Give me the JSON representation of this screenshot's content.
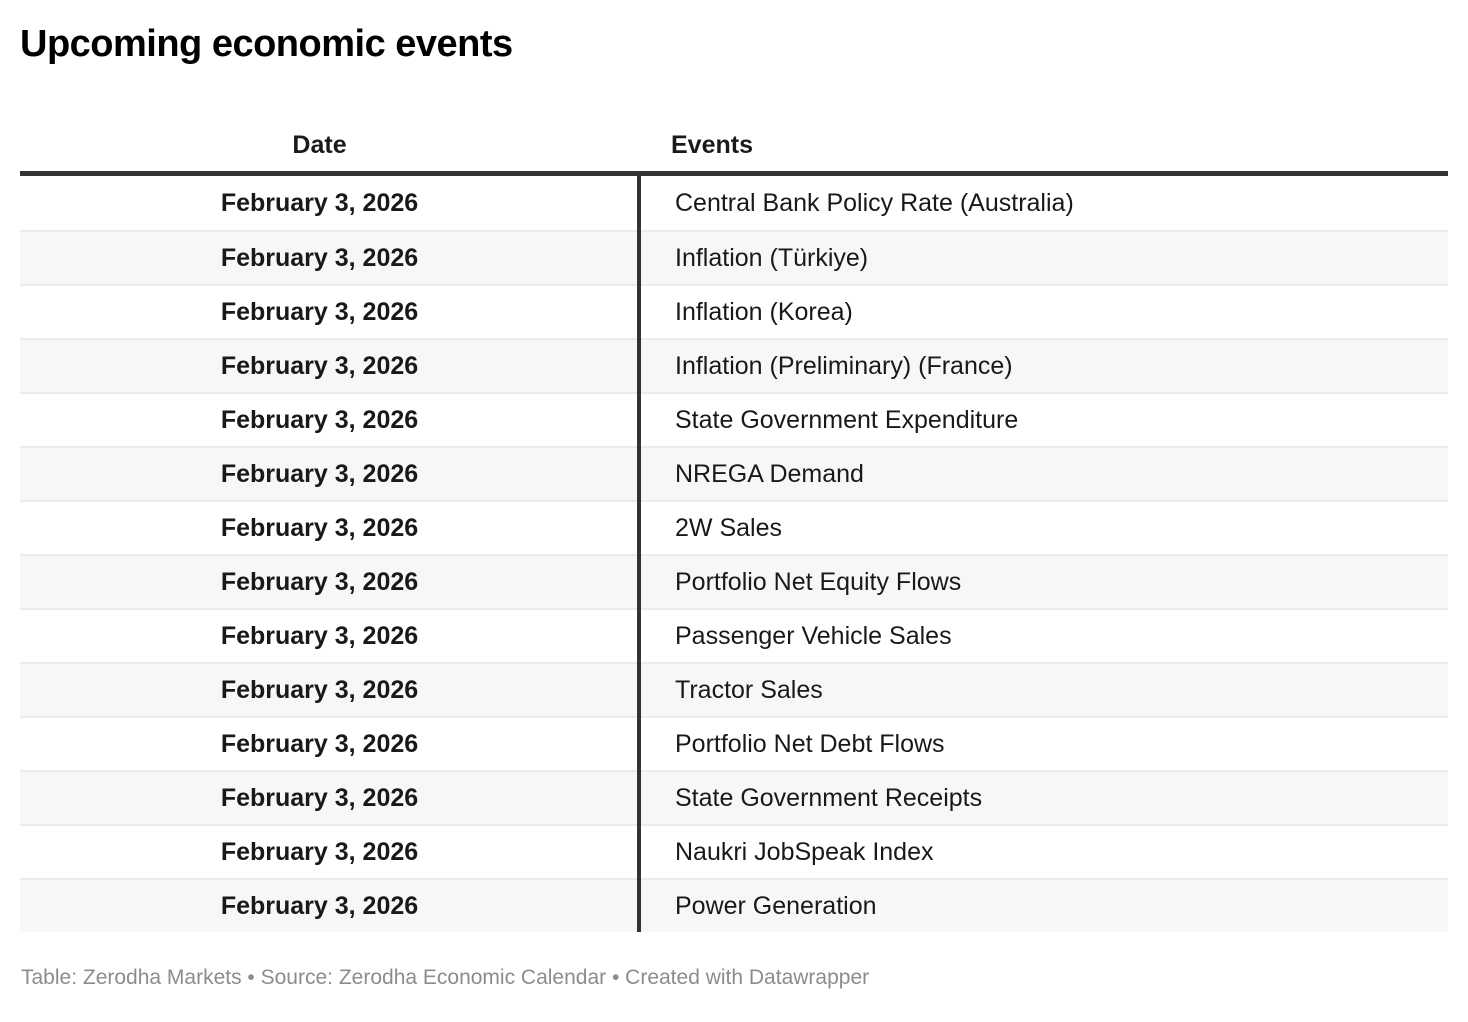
{
  "page": {
    "title": "Upcoming economic events",
    "footer": "Table: Zerodha Markets • Source: Zerodha Economic Calendar • Created with Datawrapper"
  },
  "colors": {
    "header_rule": "#333333",
    "column_divider": "#333333",
    "row_alt_background": "#f7f7f7",
    "row_separator": "#ebebeb",
    "body_text": "#191919",
    "footer_text": "#8c8c8c",
    "title_text": "#000000"
  },
  "chart_data": {
    "type": "table",
    "title": "Upcoming economic events",
    "columns": [
      "Date",
      "Events"
    ],
    "rows": [
      {
        "date": "February 3, 2026",
        "event": "Central Bank Policy Rate (Australia)"
      },
      {
        "date": "February 3, 2026",
        "event": "Inflation (Türkiye)"
      },
      {
        "date": "February 3, 2026",
        "event": "Inflation (Korea)"
      },
      {
        "date": "February 3, 2026",
        "event": "Inflation (Preliminary) (France)"
      },
      {
        "date": "February 3, 2026",
        "event": "State Government Expenditure"
      },
      {
        "date": "February 3, 2026",
        "event": "NREGA Demand"
      },
      {
        "date": "February 3, 2026",
        "event": "2W Sales"
      },
      {
        "date": "February 3, 2026",
        "event": "Portfolio Net Equity Flows"
      },
      {
        "date": "February 3, 2026",
        "event": "Passenger Vehicle Sales"
      },
      {
        "date": "February 3, 2026",
        "event": "Tractor Sales"
      },
      {
        "date": "February 3, 2026",
        "event": "Portfolio Net Debt Flows"
      },
      {
        "date": "February 3, 2026",
        "event": "State Government Receipts"
      },
      {
        "date": "February 3, 2026",
        "event": "Naukri JobSpeak Index"
      },
      {
        "date": "February 3, 2026",
        "event": "Power Generation"
      }
    ],
    "header": {
      "date_label": "Date",
      "events_label": "Events"
    },
    "layout_hints": {
      "date_column_align": "center",
      "events_column_align": "left",
      "striped_rows": true,
      "grid": "horizontal-separators-and-single-column-divider"
    }
  }
}
